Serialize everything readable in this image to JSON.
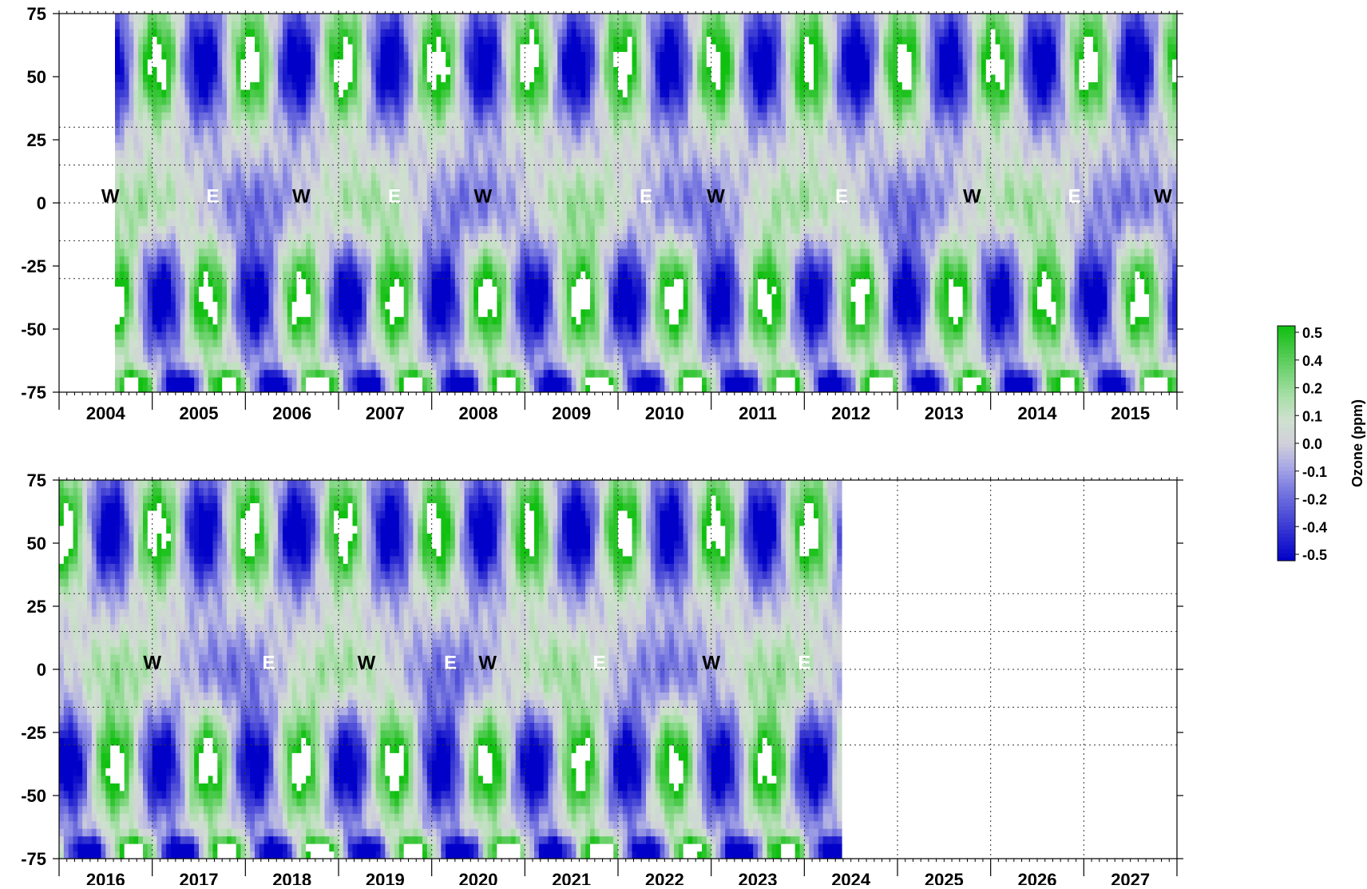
{
  "chart_data": [
    {
      "type": "heatmap",
      "panel": "top",
      "xlabel": "",
      "ylabel": "",
      "x_tick_labels": [
        "2004",
        "2005",
        "2006",
        "2007",
        "2008",
        "2009",
        "2010",
        "2011",
        "2012",
        "2013",
        "2014",
        "2015"
      ],
      "x_range": [
        2004,
        2016
      ],
      "data_start": 2004.6,
      "data_end": 2016.0,
      "y_tick_labels": [
        "75",
        "50",
        "25",
        "0",
        "-25",
        "-50",
        "-75"
      ],
      "y_range": [
        -75,
        75
      ],
      "dotted_latitudes": [
        30,
        15,
        0,
        -15,
        -30
      ],
      "annotations": [
        {
          "text": "W",
          "x": 2004.55,
          "y": 3,
          "color": "#000000"
        },
        {
          "text": "E",
          "x": 2005.65,
          "y": 3,
          "color": "#ffffff"
        },
        {
          "text": "W",
          "x": 2006.6,
          "y": 3,
          "color": "#000000"
        },
        {
          "text": "E",
          "x": 2007.6,
          "y": 3,
          "color": "#ffffff"
        },
        {
          "text": "W",
          "x": 2008.55,
          "y": 3,
          "color": "#000000"
        },
        {
          "text": "E",
          "x": 2010.3,
          "y": 3,
          "color": "#ffffff"
        },
        {
          "text": "W",
          "x": 2011.05,
          "y": 3,
          "color": "#000000"
        },
        {
          "text": "E",
          "x": 2012.4,
          "y": 3,
          "color": "#ffffff"
        },
        {
          "text": "W",
          "x": 2013.8,
          "y": 3,
          "color": "#000000"
        },
        {
          "text": "E",
          "x": 2014.9,
          "y": 3,
          "color": "#ffffff"
        },
        {
          "text": "W",
          "x": 2015.85,
          "y": 3,
          "color": "#000000"
        }
      ]
    },
    {
      "type": "heatmap",
      "panel": "bottom",
      "xlabel": "",
      "ylabel": "",
      "x_tick_labels": [
        "2016",
        "2017",
        "2018",
        "2019",
        "2020",
        "2021",
        "2022",
        "2023",
        "2024",
        "2025",
        "2026",
        "2027"
      ],
      "x_range": [
        2016,
        2028
      ],
      "data_start": 2016.0,
      "data_end": 2024.4,
      "y_tick_labels": [
        "75",
        "50",
        "25",
        "0",
        "-25",
        "-50",
        "-75"
      ],
      "y_range": [
        -75,
        75
      ],
      "dotted_latitudes": [
        30,
        15,
        0,
        -15,
        -30
      ],
      "annotations": [
        {
          "text": "W",
          "x": 2017.0,
          "y": 3,
          "color": "#000000"
        },
        {
          "text": "E",
          "x": 2018.25,
          "y": 3,
          "color": "#ffffff"
        },
        {
          "text": "W",
          "x": 2019.3,
          "y": 3,
          "color": "#000000"
        },
        {
          "text": "E",
          "x": 2020.2,
          "y": 3,
          "color": "#ffffff"
        },
        {
          "text": "W",
          "x": 2020.6,
          "y": 3,
          "color": "#000000"
        },
        {
          "text": "E",
          "x": 2021.8,
          "y": 3,
          "color": "#ffffff"
        },
        {
          "text": "W",
          "x": 2023.0,
          "y": 3,
          "color": "#000000"
        },
        {
          "text": "E",
          "x": 2024.0,
          "y": 3,
          "color": "#ffffff"
        }
      ]
    }
  ],
  "colorbar": {
    "label": "Ozone (ppm)",
    "tick_labels": [
      "0.5",
      "0.4",
      "0.2",
      "0.1",
      "0.0",
      "-0.1",
      "-0.2",
      "-0.4",
      "-0.5"
    ],
    "levels": [
      -0.5,
      -0.4,
      -0.3,
      -0.2,
      -0.1,
      0.0,
      0.1,
      0.2,
      0.3,
      0.4,
      0.5
    ],
    "colors": [
      "#0000c8",
      "#2626d0",
      "#5050d8",
      "#7878e0",
      "#a8a8e6",
      "#d0d0da",
      "#cfe0cf",
      "#a8dfa8",
      "#78d478",
      "#45c845",
      "#10c010"
    ]
  }
}
